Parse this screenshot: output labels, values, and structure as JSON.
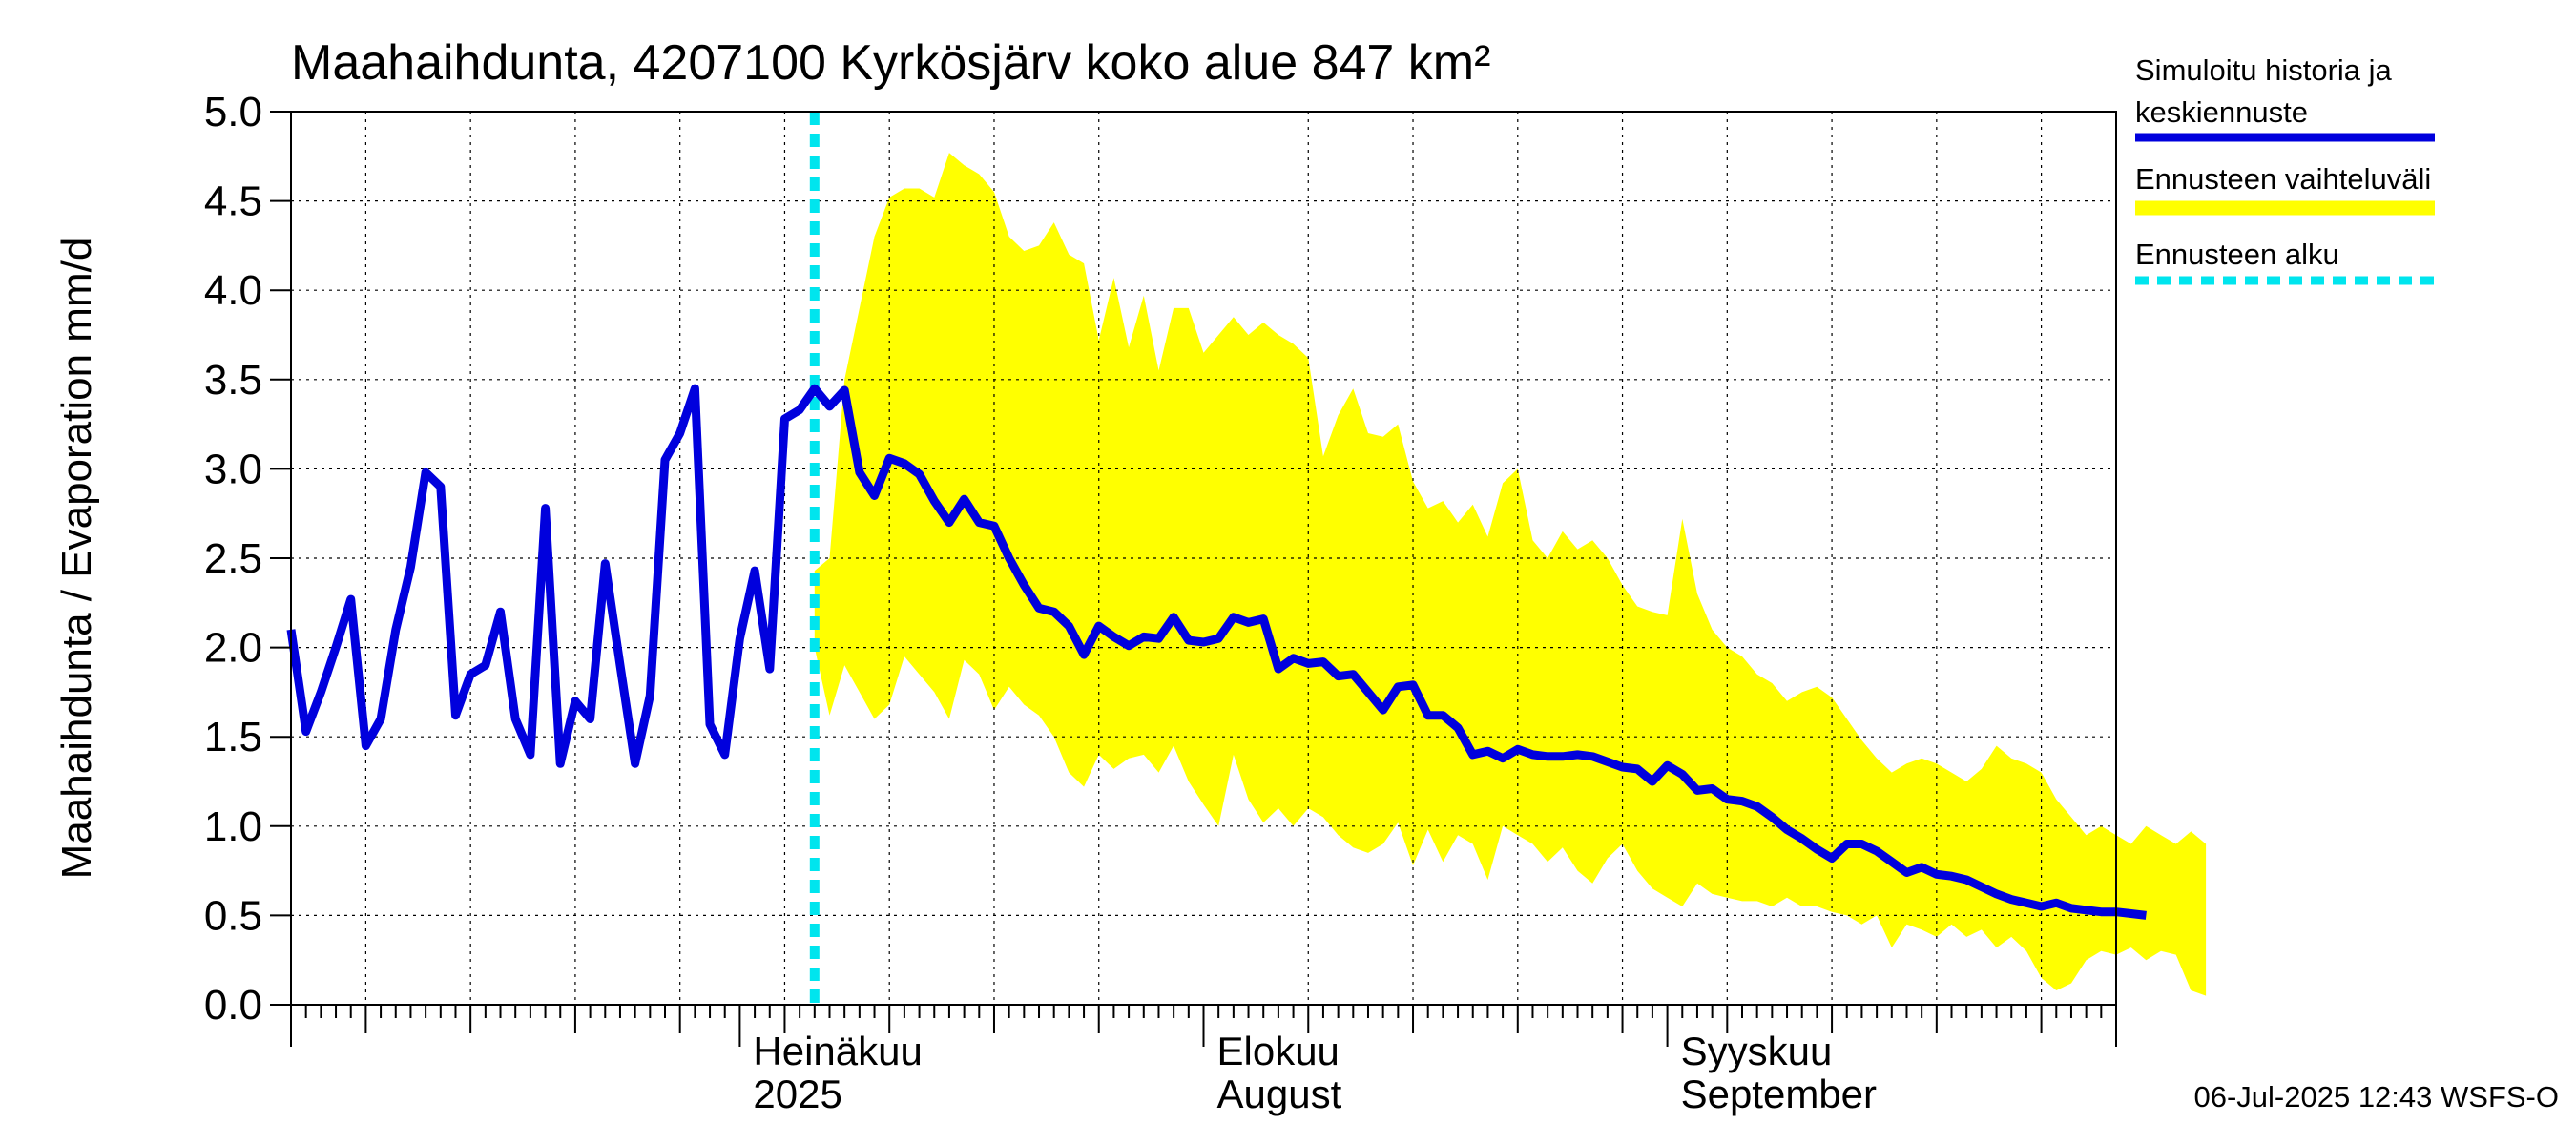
{
  "chart_data": {
    "type": "line",
    "title": "Maahaihdunta, 4207100 Kyrkösjärv koko alue 847 km²",
    "ylabel": "Maahaihdunta / Evaporation   mm/d",
    "ylim": [
      0,
      5
    ],
    "yticks": [
      "0.0",
      "0.5",
      "1.0",
      "1.5",
      "2.0",
      "2.5",
      "3.0",
      "3.5",
      "4.0",
      "4.5",
      "5.0"
    ],
    "xlim": [
      "2025-06-01",
      "2025-10-01"
    ],
    "grid": true,
    "legend_position": "right",
    "forecast_start": "2025-07-06",
    "month_labels": [
      {
        "date": "2025-07-01",
        "line1": "Heinäkuu",
        "line2": "2025"
      },
      {
        "date": "2025-08-01",
        "line1": "Elokuu",
        "line2": "August"
      },
      {
        "date": "2025-09-01",
        "line1": "Syyskuu",
        "line2": "September"
      }
    ],
    "series": [
      {
        "name": "Simuloitu historia ja keskiennuste",
        "color": "#0000dd",
        "start_date": "2025-06-01",
        "values": [
          2.1,
          1.53,
          1.75,
          2.0,
          2.27,
          1.45,
          1.6,
          2.1,
          2.45,
          2.98,
          2.9,
          1.62,
          1.85,
          1.9,
          2.2,
          1.6,
          1.4,
          2.78,
          1.35,
          1.7,
          1.6,
          2.47,
          1.9,
          1.35,
          1.73,
          3.05,
          3.2,
          3.45,
          1.57,
          1.4,
          2.05,
          2.43,
          1.88,
          3.28,
          3.33,
          3.45,
          3.35,
          3.44,
          2.98,
          2.85,
          3.06,
          3.03,
          2.97,
          2.82,
          2.7,
          2.83,
          2.7,
          2.68,
          2.5,
          2.35,
          2.22,
          2.2,
          2.12,
          1.96,
          2.12,
          2.06,
          2.01,
          2.06,
          2.05,
          2.17,
          2.04,
          2.03,
          2.05,
          2.17,
          2.14,
          2.16,
          1.88,
          1.94,
          1.91,
          1.92,
          1.84,
          1.85,
          1.75,
          1.65,
          1.78,
          1.79,
          1.62,
          1.62,
          1.55,
          1.4,
          1.42,
          1.38,
          1.43,
          1.4,
          1.39,
          1.39,
          1.4,
          1.39,
          1.36,
          1.33,
          1.32,
          1.25,
          1.34,
          1.29,
          1.2,
          1.21,
          1.15,
          1.14,
          1.11,
          1.05,
          0.98,
          0.93,
          0.87,
          0.82,
          0.9,
          0.9,
          0.86,
          0.8,
          0.74,
          0.77,
          0.73,
          0.72,
          0.7,
          0.66,
          0.62,
          0.59,
          0.57,
          0.55,
          0.57,
          0.54,
          0.53,
          0.52,
          0.52,
          0.51,
          0.5
        ]
      },
      {
        "name": "Ennusteen vaihteluväli",
        "color": "#ffff00",
        "start_date": "2025-07-06",
        "upper": [
          2.43,
          2.5,
          3.5,
          3.9,
          4.3,
          4.52,
          4.57,
          4.57,
          4.52,
          4.77,
          4.7,
          4.65,
          4.55,
          4.3,
          4.22,
          4.25,
          4.38,
          4.2,
          4.15,
          3.72,
          4.07,
          3.68,
          3.97,
          3.55,
          3.9,
          3.9,
          3.65,
          3.75,
          3.85,
          3.75,
          3.82,
          3.75,
          3.7,
          3.62,
          3.07,
          3.3,
          3.45,
          3.2,
          3.18,
          3.25,
          2.93,
          2.78,
          2.82,
          2.7,
          2.8,
          2.62,
          2.92,
          3.0,
          2.6,
          2.5,
          2.65,
          2.55,
          2.6,
          2.5,
          2.35,
          2.23,
          2.2,
          2.18,
          2.72,
          2.3,
          2.1,
          2.0,
          1.95,
          1.85,
          1.8,
          1.7,
          1.75,
          1.78,
          1.72,
          1.6,
          1.48,
          1.38,
          1.3,
          1.35,
          1.38,
          1.35,
          1.3,
          1.25,
          1.32,
          1.45,
          1.38,
          1.35,
          1.3,
          1.15,
          1.05,
          0.95,
          1.0,
          0.95,
          0.9,
          1.0,
          0.95,
          0.9,
          0.97,
          0.9
        ],
        "lower": [
          2.0,
          1.62,
          1.9,
          1.75,
          1.6,
          1.68,
          1.95,
          1.85,
          1.75,
          1.6,
          1.93,
          1.85,
          1.65,
          1.78,
          1.68,
          1.62,
          1.5,
          1.3,
          1.22,
          1.4,
          1.32,
          1.38,
          1.4,
          1.3,
          1.45,
          1.25,
          1.12,
          1.0,
          1.4,
          1.15,
          1.02,
          1.1,
          1.0,
          1.1,
          1.05,
          0.95,
          0.88,
          0.85,
          0.9,
          1.02,
          0.78,
          0.98,
          0.8,
          0.95,
          0.9,
          0.7,
          1.0,
          0.95,
          0.9,
          0.8,
          0.88,
          0.75,
          0.68,
          0.82,
          0.9,
          0.75,
          0.65,
          0.6,
          0.55,
          0.68,
          0.62,
          0.6,
          0.58,
          0.58,
          0.55,
          0.6,
          0.55,
          0.55,
          0.52,
          0.5,
          0.45,
          0.5,
          0.32,
          0.45,
          0.42,
          0.38,
          0.45,
          0.38,
          0.42,
          0.32,
          0.38,
          0.3,
          0.15,
          0.08,
          0.12,
          0.25,
          0.3,
          0.28,
          0.32,
          0.25,
          0.3,
          0.28,
          0.08,
          0.05
        ]
      },
      {
        "name": "Ennusteen alku",
        "color": "#00e5ee"
      }
    ],
    "footer": "06-Jul-2025 12:43 WSFS-O"
  }
}
